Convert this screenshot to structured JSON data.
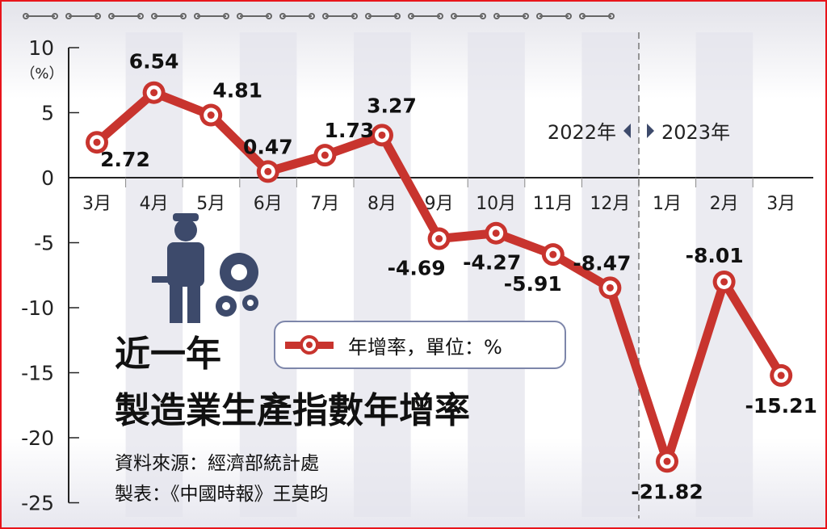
{
  "chart_data": {
    "type": "line",
    "title": "近一年\n製造業生產指數年增率",
    "title_line1": "近一年",
    "title_line2": "製造業生產指數年增率",
    "source": "資料來源：經濟部統計處",
    "credit": "製表：《中國時報》王莫昀",
    "ylabel": "（%）",
    "ylim": [
      -25,
      10
    ],
    "yticks": [
      10,
      5,
      0,
      -5,
      -10,
      -15,
      -20,
      -25
    ],
    "categories": [
      "3月",
      "4月",
      "5月",
      "6月",
      "7月",
      "8月",
      "9月",
      "10月",
      "11月",
      "12月",
      "1月",
      "2月",
      "3月"
    ],
    "series": [
      {
        "name": "年增率，單位：%",
        "values": [
          2.72,
          6.54,
          4.81,
          0.47,
          1.73,
          3.27,
          -4.69,
          -4.27,
          -5.91,
          -8.47,
          -21.82,
          -8.01,
          -15.21
        ]
      }
    ],
    "data_labels": [
      "2.72",
      "6.54",
      "4.81",
      "0.47",
      "1.73",
      "3.27",
      "-4.69",
      "-4.27",
      "-5.91",
      "-8.47",
      "-21.82",
      "-8.01",
      "-15.21"
    ],
    "year_divider": {
      "left": "2022年",
      "right": "2023年",
      "between": [
        "12月",
        "1月"
      ]
    },
    "legend": "年增率，單位：%",
    "legend_placement": "center",
    "grid": false,
    "colors": {
      "line": "#c8342e",
      "stripe": "#e4e4ec",
      "frame": "#e8141b",
      "icon": "#3d4a6b"
    }
  }
}
